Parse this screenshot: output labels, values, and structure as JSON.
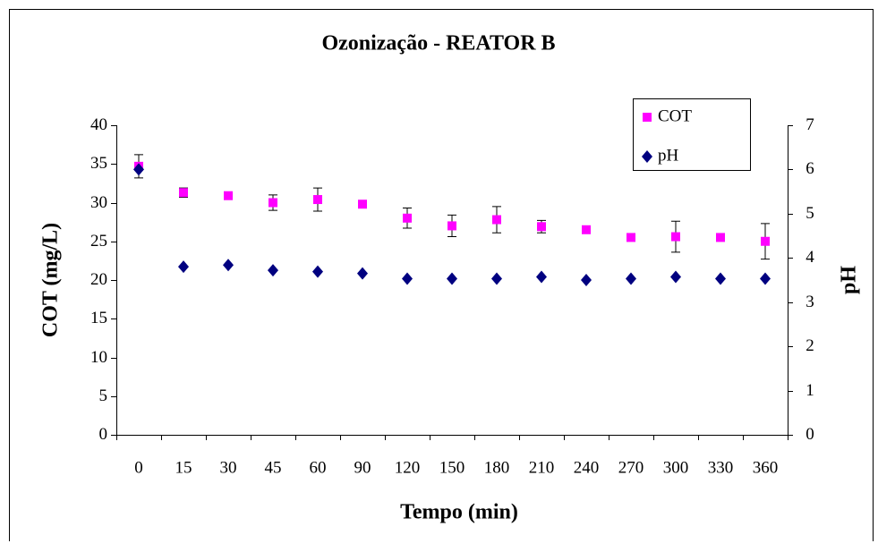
{
  "chart_data": {
    "type": "scatter",
    "title": "Ozonização - REATOR B",
    "x_label": "Tempo (min)",
    "y_label": "COT (mg/L)",
    "y2_label": "pH",
    "categories": [
      "0",
      "15",
      "30",
      "45",
      "60",
      "90",
      "120",
      "150",
      "180",
      "210",
      "240",
      "270",
      "300",
      "330",
      "360"
    ],
    "series": [
      {
        "name": "COT",
        "color": "#ff00ff",
        "marker": "square",
        "values": [
          34.7,
          31.3,
          30.9,
          30.0,
          30.4,
          29.8,
          28.0,
          27.0,
          27.8,
          26.9,
          26.5,
          25.5,
          25.6,
          25.5,
          25.0
        ],
        "errors": [
          1.5,
          0.6,
          0.4,
          1.0,
          1.5,
          0.3,
          1.3,
          1.4,
          1.7,
          0.8,
          0.3,
          0.3,
          2.0,
          0.3,
          2.3
        ]
      },
      {
        "name": "pH",
        "color": "#000080",
        "marker": "diamond",
        "axis": "y2",
        "values": [
          6.0,
          3.8,
          3.84,
          3.72,
          3.69,
          3.65,
          3.53,
          3.53,
          3.53,
          3.57,
          3.5,
          3.53,
          3.57,
          3.53,
          3.53
        ]
      }
    ],
    "ylim": [
      0,
      40
    ],
    "yticks": [
      0,
      5,
      10,
      15,
      20,
      25,
      30,
      35,
      40
    ],
    "y2lim": [
      0,
      7
    ],
    "y2ticks": [
      0,
      1,
      2,
      3,
      4,
      5,
      6,
      7
    ],
    "legend": "upper right"
  }
}
